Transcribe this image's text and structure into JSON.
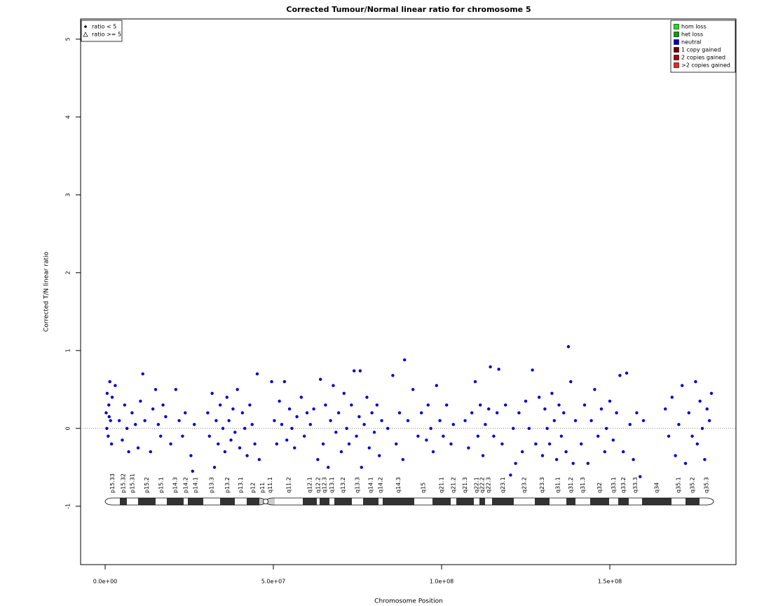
{
  "chart_data": {
    "type": "scatter",
    "title": "Corrected Tumour/Normal linear ratio for chromosome  5",
    "xlabel": "Chromosome Position",
    "ylabel": "Corrected T/N linear ratio",
    "xlim": [
      -7290000,
      187500000
    ],
    "ylim": [
      -1.75,
      5.26
    ],
    "xticks": [
      {
        "value": 0,
        "label": "0.0e+00"
      },
      {
        "value": 50000000,
        "label": "5.0e+07"
      },
      {
        "value": 100000000,
        "label": "1.0e+08"
      },
      {
        "value": 150000000,
        "label": "1.5e+08"
      }
    ],
    "yticks": [
      -1,
      0,
      1,
      2,
      3,
      4,
      5
    ],
    "hline": 0,
    "color": "#0000cc",
    "x": [
      300000,
      600000,
      900000,
      1100000,
      1400000,
      1600000,
      1900000,
      2100000,
      500000,
      1200000,
      3000000,
      4200000,
      5100000,
      5800000,
      6500000,
      7000000,
      8000000,
      9000000,
      9800000,
      10500000,
      11200000,
      11800000,
      13500000,
      14200000,
      15000000,
      15800000,
      16500000,
      17200000,
      18000000,
      19500000,
      21000000,
      22000000,
      23000000,
      23800000,
      25500000,
      26000000,
      26500000,
      30500000,
      31000000,
      31800000,
      32500000,
      33000000,
      33600000,
      34200000,
      35000000,
      35600000,
      36200000,
      36800000,
      37400000,
      38000000,
      38600000,
      39300000,
      40000000,
      40800000,
      41500000,
      42200000,
      43000000,
      43700000,
      44500000,
      45200000,
      45800000,
      49500000,
      50300000,
      51000000,
      51800000,
      52500000,
      53300000,
      54000000,
      54800000,
      55500000,
      56300000,
      57000000,
      58300000,
      59200000,
      60000000,
      61000000,
      62000000,
      63200000,
      64000000,
      64800000,
      65500000,
      66300000,
      67000000,
      67800000,
      68600000,
      69400000,
      70200000,
      71000000,
      71800000,
      72500000,
      73200000,
      74000000,
      74700000,
      75500000,
      76200000,
      77000000,
      77800000,
      78500000,
      79300000,
      80000000,
      80800000,
      81500000,
      82200000,
      75800000,
      84000000,
      85500000,
      86500000,
      87500000,
      88500000,
      89000000,
      90000000,
      91500000,
      93000000,
      94000000,
      95500000,
      96000000,
      96800000,
      97500000,
      98500000,
      99500000,
      100500000,
      101500000,
      102800000,
      103500000,
      107000000,
      108000000,
      109000000,
      110000000,
      110800000,
      111500000,
      112300000,
      113000000,
      114000000,
      114500000,
      115500000,
      116500000,
      117000000,
      118000000,
      119000000,
      120500000,
      121300000,
      122000000,
      123000000,
      124000000,
      125000000,
      126000000,
      127000000,
      128000000,
      129000000,
      130000000,
      130700000,
      131400000,
      132100000,
      132800000,
      133500000,
      134200000,
      134900000,
      135600000,
      136300000,
      137000000,
      137700000,
      138400000,
      139100000,
      139800000,
      141500000,
      142500000,
      143500000,
      144500000,
      145500000,
      146500000,
      147500000,
      148500000,
      149000000,
      150000000,
      151000000,
      152000000,
      153000000,
      154000000,
      155000000,
      156000000,
      157000000,
      158000000,
      159000000,
      160000000,
      166500000,
      167500000,
      168500000,
      169500000,
      170500000,
      171500000,
      172500000,
      173500000,
      174500000,
      175500000,
      176000000,
      176800000,
      177500000,
      178200000,
      178900000,
      179600000,
      180200000
    ],
    "values": [
      0.2,
      0.45,
      -0.1,
      0.3,
      0.6,
      0.1,
      -0.2,
      0.4,
      0.0,
      0.15,
      0.55,
      0.1,
      -0.15,
      0.3,
      0.0,
      -0.3,
      0.2,
      0.05,
      -0.25,
      0.35,
      0.7,
      0.1,
      -0.3,
      0.25,
      0.5,
      0.05,
      -0.1,
      0.3,
      0.15,
      -0.2,
      0.5,
      0.1,
      -0.1,
      0.2,
      -0.35,
      -0.55,
      0.05,
      0.2,
      -0.1,
      0.45,
      -0.5,
      0.1,
      -0.2,
      0.3,
      0.0,
      -0.3,
      0.4,
      0.1,
      -0.15,
      0.25,
      -0.05,
      0.5,
      -0.25,
      0.2,
      0.0,
      -0.35,
      0.3,
      0.05,
      -0.2,
      0.7,
      -0.4,
      0.6,
      0.1,
      -0.2,
      0.35,
      0.05,
      0.6,
      -0.15,
      0.25,
      0.0,
      -0.25,
      0.15,
      0.4,
      -0.1,
      0.2,
      0.05,
      0.25,
      -0.4,
      0.63,
      -0.2,
      0.3,
      -0.5,
      0.1,
      0.55,
      -0.05,
      0.2,
      -0.3,
      0.45,
      0.0,
      -0.2,
      0.3,
      0.74,
      -0.1,
      0.15,
      -0.5,
      0.05,
      0.4,
      -0.25,
      0.2,
      -0.05,
      0.3,
      -0.35,
      0.1,
      0.74,
      0.0,
      0.68,
      -0.2,
      0.2,
      -0.4,
      0.88,
      0.1,
      0.5,
      -0.1,
      0.2,
      -0.15,
      0.3,
      0.0,
      -0.3,
      0.55,
      0.1,
      -0.1,
      0.3,
      -0.2,
      0.05,
      0.1,
      -0.25,
      0.2,
      0.6,
      -0.1,
      0.3,
      -0.35,
      0.05,
      0.25,
      0.79,
      -0.1,
      0.2,
      0.76,
      -0.2,
      0.3,
      -0.6,
      0.0,
      -0.45,
      0.2,
      -0.3,
      0.35,
      0.0,
      0.75,
      -0.2,
      0.4,
      -0.35,
      0.25,
      0.0,
      -0.2,
      0.45,
      0.1,
      -0.4,
      0.3,
      -0.1,
      0.2,
      -0.3,
      1.05,
      0.6,
      -0.45,
      0.1,
      -0.2,
      0.3,
      -0.45,
      0.1,
      0.5,
      -0.1,
      0.25,
      -0.3,
      0.0,
      0.35,
      -0.15,
      0.2,
      0.68,
      -0.3,
      0.71,
      0.05,
      -0.4,
      0.2,
      -0.62,
      0.1,
      0.25,
      -0.1,
      0.4,
      -0.35,
      0.05,
      0.55,
      -0.45,
      0.2,
      -0.1,
      0.6,
      -0.2,
      0.35,
      0.0,
      -0.4,
      0.25,
      0.1,
      0.45
    ],
    "band_labels": [
      "p15.33",
      "p15.32",
      "p15.31",
      "p15.2",
      "p15.1",
      "p14.3",
      "p14.2",
      "p14.1",
      "p13.3",
      "p13.2",
      "p13.1",
      "p12",
      "p11",
      "q11.1",
      "q11.2",
      "q12.1",
      "q12.2",
      "q12.3",
      "q13.1",
      "q13.2",
      "q13.3",
      "q14.1",
      "q14.2",
      "q14.3",
      "q15",
      "q21.1",
      "q21.2",
      "q21.3",
      "q22.1",
      "q22.2",
      "q22.3",
      "q23.1",
      "q23.2",
      "q23.3",
      "q31.1",
      "q31.2",
      "q31.3",
      "q32",
      "q33.1",
      "q33.2",
      "q33.3",
      "q34",
      "q35.1",
      "q35.2",
      "q35.3"
    ],
    "band_edges": [
      0,
      4375000,
      6458000,
      9792000,
      15000000,
      18333000,
      23333000,
      24583000,
      29167000,
      34167000,
      38542000,
      42083000,
      45833000,
      47708000,
      50417000,
      58750000,
      62917000,
      63750000,
      66667000,
      68125000,
      73333000,
      76667000,
      81250000,
      82500000,
      91875000,
      97292000,
      102708000,
      104375000,
      109583000,
      111250000,
      112917000,
      115000000,
      121458000,
      127708000,
      132083000,
      137083000,
      139792000,
      144167000,
      149792000,
      152500000,
      155625000,
      159583000,
      168333000,
      172500000,
      176667000,
      180833000
    ],
    "band_colors": [
      "#ffffff",
      "#333333",
      "#ffffff",
      "#333333",
      "#ffffff",
      "#333333",
      "#ffffff",
      "#333333",
      "#ffffff",
      "#333333",
      "#ffffff",
      "#333333",
      "#cccccc",
      "#cccccc",
      "#ffffff",
      "#333333",
      "#ffffff",
      "#333333",
      "#ffffff",
      "#333333",
      "#ffffff",
      "#333333",
      "#ffffff",
      "#333333",
      "#ffffff",
      "#333333",
      "#ffffff",
      "#333333",
      "#ffffff",
      "#333333",
      "#ffffff",
      "#333333",
      "#ffffff",
      "#333333",
      "#ffffff",
      "#333333",
      "#ffffff",
      "#333333",
      "#ffffff",
      "#333333",
      "#ffffff",
      "#333333",
      "#ffffff",
      "#333333",
      "#ffffff"
    ],
    "legends": [
      {
        "position": "top-left",
        "labels": [
          "ratio < 5",
          "ratio >= 5"
        ]
      },
      {
        "position": "top-right",
        "labels": [
          "hom loss",
          "het loss",
          "neutral",
          "1 copy gained",
          "2 copies gained",
          ">2 copies gained"
        ],
        "colors": [
          "#22dd22",
          "#119911",
          "#0000bb",
          "#660000",
          "#aa0000",
          "#ee2222"
        ]
      }
    ]
  }
}
